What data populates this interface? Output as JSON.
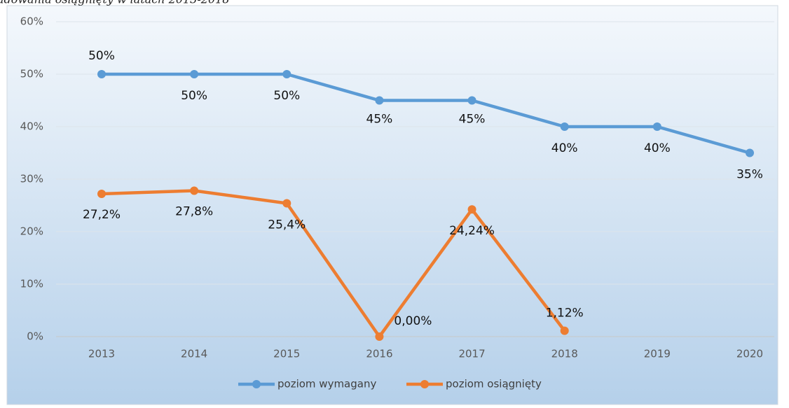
{
  "chart_data": {
    "type": "line",
    "title": "adowania osiągnięty w latach 2013-2018",
    "categories": [
      "2013",
      "2014",
      "2015",
      "2016",
      "2017",
      "2018",
      "2019",
      "2020"
    ],
    "series": [
      {
        "name": "poziom wymagany",
        "color": "#5b9bd5",
        "values": [
          50,
          50,
          50,
          45,
          45,
          40,
          40,
          35
        ],
        "value_labels": [
          "50%",
          "50%",
          "50%",
          "45%",
          "45%",
          "40%",
          "40%",
          "35%"
        ]
      },
      {
        "name": "poziom osiągnięty",
        "color": "#ed7d31",
        "values": [
          27.2,
          27.8,
          25.4,
          0,
          24.24,
          1.12,
          null,
          null
        ],
        "value_labels": [
          "27,2%",
          "27,8%",
          "25,4%",
          "0,00%",
          "24,24%",
          "1,12%",
          null,
          null
        ]
      }
    ],
    "ylim": [
      0,
      60
    ],
    "yticks": [
      {
        "value": 0,
        "label": "0%"
      },
      {
        "value": 10,
        "label": "10%"
      },
      {
        "value": 20,
        "label": "20%"
      },
      {
        "value": 30,
        "label": "30%"
      },
      {
        "value": 40,
        "label": "40%"
      },
      {
        "value": 50,
        "label": "50%"
      },
      {
        "value": 60,
        "label": "60%"
      }
    ],
    "grid": true,
    "legend": "bottom"
  }
}
